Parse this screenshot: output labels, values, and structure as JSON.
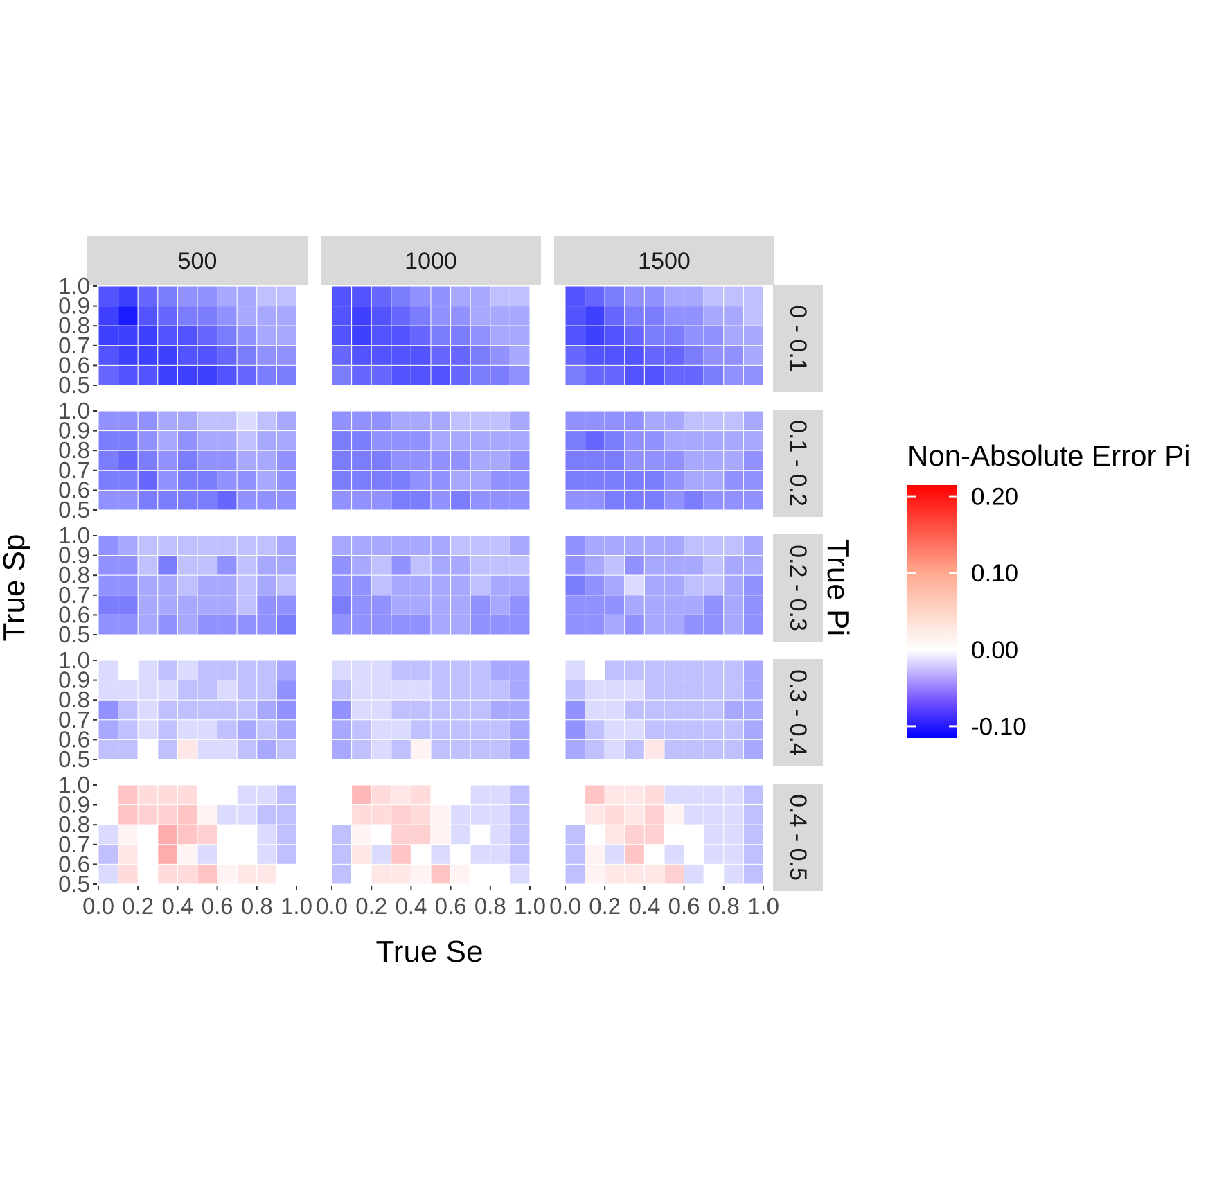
{
  "chart_data": {
    "type": "heatmap",
    "title": "",
    "xlabel": "True Se",
    "ylabel": "True Sp",
    "facet_col_label_title": "",
    "facet_row_title": "True Pi",
    "col_facets": [
      "500",
      "1000",
      "1500"
    ],
    "row_facets": [
      "0 - 0.1",
      "0.1 - 0.2",
      "0.2 - 0.3",
      "0.3 - 0.4",
      "0.4 - 0.5"
    ],
    "x_ticks": [
      "0.0",
      "0.2",
      "0.4",
      "0.6",
      "0.8",
      "1.0"
    ],
    "y_ticks": [
      "0.5",
      "0.6",
      "0.7",
      "0.8",
      "0.9",
      "1.0"
    ],
    "xlim": [
      0.0,
      1.0
    ],
    "ylim": [
      0.5,
      1.0
    ],
    "x_bins": 10,
    "y_bins": 5,
    "values_note": "values[row_facet][col_facet][sp_row from 1.0 down to 0.5][se_col from 0.0 to 1.0]",
    "values": [
      [
        [
          [
            -0.07,
            -0.08,
            -0.06,
            -0.05,
            -0.04,
            -0.04,
            -0.03,
            -0.03,
            -0.02,
            -0.02
          ],
          [
            -0.08,
            -0.1,
            -0.07,
            -0.06,
            -0.05,
            -0.05,
            -0.04,
            -0.03,
            -0.03,
            -0.03
          ],
          [
            -0.08,
            -0.08,
            -0.08,
            -0.07,
            -0.07,
            -0.06,
            -0.05,
            -0.04,
            -0.03,
            -0.03
          ],
          [
            -0.07,
            -0.08,
            -0.08,
            -0.08,
            -0.07,
            -0.07,
            -0.06,
            -0.05,
            -0.04,
            -0.04
          ],
          [
            -0.06,
            -0.07,
            -0.07,
            -0.08,
            -0.08,
            -0.08,
            -0.07,
            -0.06,
            -0.05,
            -0.05
          ]
        ],
        [
          [
            -0.07,
            -0.07,
            -0.06,
            -0.05,
            -0.04,
            -0.04,
            -0.03,
            -0.03,
            -0.02,
            -0.02
          ],
          [
            -0.07,
            -0.08,
            -0.07,
            -0.06,
            -0.05,
            -0.04,
            -0.04,
            -0.03,
            -0.03,
            -0.03
          ],
          [
            -0.07,
            -0.08,
            -0.07,
            -0.07,
            -0.06,
            -0.05,
            -0.05,
            -0.04,
            -0.03,
            -0.03
          ],
          [
            -0.06,
            -0.07,
            -0.07,
            -0.07,
            -0.07,
            -0.06,
            -0.06,
            -0.05,
            -0.04,
            -0.03
          ],
          [
            -0.05,
            -0.06,
            -0.06,
            -0.07,
            -0.07,
            -0.07,
            -0.06,
            -0.05,
            -0.05,
            -0.04
          ]
        ],
        [
          [
            -0.07,
            -0.06,
            -0.05,
            -0.04,
            -0.04,
            -0.03,
            -0.03,
            -0.02,
            -0.02,
            -0.02
          ],
          [
            -0.07,
            -0.08,
            -0.06,
            -0.05,
            -0.05,
            -0.04,
            -0.04,
            -0.03,
            -0.03,
            -0.02
          ],
          [
            -0.07,
            -0.08,
            -0.07,
            -0.06,
            -0.05,
            -0.05,
            -0.04,
            -0.04,
            -0.03,
            -0.03
          ],
          [
            -0.06,
            -0.07,
            -0.07,
            -0.07,
            -0.06,
            -0.06,
            -0.05,
            -0.04,
            -0.04,
            -0.03
          ],
          [
            -0.05,
            -0.06,
            -0.06,
            -0.07,
            -0.07,
            -0.06,
            -0.06,
            -0.05,
            -0.04,
            -0.04
          ]
        ]
      ],
      [
        [
          [
            -0.04,
            -0.04,
            -0.04,
            -0.03,
            -0.03,
            -0.02,
            -0.02,
            -0.01,
            -0.02,
            -0.03
          ],
          [
            -0.05,
            -0.05,
            -0.04,
            -0.03,
            -0.04,
            -0.03,
            -0.03,
            -0.02,
            -0.03,
            -0.03
          ],
          [
            -0.05,
            -0.06,
            -0.05,
            -0.04,
            -0.05,
            -0.04,
            -0.04,
            -0.03,
            -0.03,
            -0.04
          ],
          [
            -0.05,
            -0.05,
            -0.06,
            -0.04,
            -0.05,
            -0.05,
            -0.04,
            -0.04,
            -0.03,
            -0.04
          ],
          [
            -0.04,
            -0.04,
            -0.05,
            -0.05,
            -0.05,
            -0.05,
            -0.06,
            -0.04,
            -0.04,
            -0.04
          ]
        ],
        [
          [
            -0.04,
            -0.04,
            -0.04,
            -0.03,
            -0.03,
            -0.03,
            -0.02,
            -0.02,
            -0.02,
            -0.03
          ],
          [
            -0.05,
            -0.05,
            -0.04,
            -0.04,
            -0.04,
            -0.03,
            -0.03,
            -0.03,
            -0.03,
            -0.03
          ],
          [
            -0.05,
            -0.05,
            -0.05,
            -0.04,
            -0.04,
            -0.04,
            -0.04,
            -0.03,
            -0.03,
            -0.04
          ],
          [
            -0.05,
            -0.05,
            -0.05,
            -0.05,
            -0.04,
            -0.04,
            -0.03,
            -0.03,
            -0.04,
            -0.04
          ],
          [
            -0.04,
            -0.04,
            -0.04,
            -0.05,
            -0.05,
            -0.04,
            -0.05,
            -0.04,
            -0.04,
            -0.04
          ]
        ],
        [
          [
            -0.04,
            -0.04,
            -0.04,
            -0.04,
            -0.03,
            -0.03,
            -0.02,
            -0.02,
            -0.02,
            -0.03
          ],
          [
            -0.05,
            -0.06,
            -0.05,
            -0.04,
            -0.04,
            -0.03,
            -0.03,
            -0.03,
            -0.03,
            -0.03
          ],
          [
            -0.05,
            -0.05,
            -0.05,
            -0.04,
            -0.04,
            -0.04,
            -0.03,
            -0.03,
            -0.03,
            -0.04
          ],
          [
            -0.05,
            -0.05,
            -0.05,
            -0.05,
            -0.05,
            -0.04,
            -0.03,
            -0.03,
            -0.04,
            -0.04
          ],
          [
            -0.04,
            -0.04,
            -0.05,
            -0.05,
            -0.05,
            -0.04,
            -0.05,
            -0.04,
            -0.04,
            -0.04
          ]
        ]
      ],
      [
        [
          [
            -0.04,
            -0.03,
            -0.02,
            -0.02,
            -0.02,
            -0.02,
            -0.02,
            -0.02,
            -0.02,
            -0.03
          ],
          [
            -0.04,
            -0.04,
            -0.02,
            -0.05,
            -0.02,
            -0.02,
            -0.04,
            -0.02,
            -0.03,
            -0.03
          ],
          [
            -0.04,
            -0.04,
            -0.03,
            -0.03,
            -0.02,
            -0.03,
            -0.03,
            -0.02,
            -0.03,
            -0.02
          ],
          [
            -0.05,
            -0.05,
            -0.03,
            -0.03,
            -0.03,
            -0.03,
            -0.03,
            -0.02,
            -0.04,
            -0.04
          ],
          [
            -0.04,
            -0.04,
            -0.03,
            -0.04,
            -0.03,
            -0.04,
            -0.04,
            -0.04,
            -0.04,
            -0.05
          ]
        ],
        [
          [
            -0.03,
            -0.03,
            -0.03,
            -0.03,
            -0.03,
            -0.03,
            -0.02,
            -0.02,
            -0.02,
            -0.03
          ],
          [
            -0.04,
            -0.03,
            -0.02,
            -0.04,
            -0.02,
            -0.03,
            -0.03,
            -0.02,
            -0.02,
            -0.02
          ],
          [
            -0.04,
            -0.04,
            -0.02,
            -0.03,
            -0.03,
            -0.03,
            -0.03,
            -0.02,
            -0.03,
            -0.03
          ],
          [
            -0.05,
            -0.04,
            -0.04,
            -0.03,
            -0.03,
            -0.03,
            -0.03,
            -0.04,
            -0.03,
            -0.04
          ],
          [
            -0.04,
            -0.04,
            -0.04,
            -0.04,
            -0.04,
            -0.03,
            -0.03,
            -0.04,
            -0.04,
            -0.04
          ]
        ],
        [
          [
            -0.04,
            -0.03,
            -0.03,
            -0.03,
            -0.03,
            -0.03,
            -0.02,
            -0.02,
            -0.02,
            -0.03
          ],
          [
            -0.04,
            -0.03,
            -0.02,
            -0.04,
            -0.03,
            -0.03,
            -0.03,
            -0.02,
            -0.03,
            -0.03
          ],
          [
            -0.05,
            -0.04,
            -0.03,
            -0.01,
            -0.03,
            -0.03,
            -0.02,
            -0.02,
            -0.03,
            -0.04
          ],
          [
            -0.04,
            -0.04,
            -0.04,
            -0.03,
            -0.03,
            -0.03,
            -0.03,
            -0.04,
            -0.03,
            -0.04
          ],
          [
            -0.04,
            -0.04,
            -0.03,
            -0.04,
            -0.03,
            -0.03,
            -0.04,
            -0.04,
            -0.03,
            -0.04
          ]
        ]
      ],
      [
        [
          [
            -0.01,
            0.0,
            -0.01,
            -0.02,
            -0.01,
            -0.02,
            -0.02,
            -0.02,
            -0.02,
            -0.03
          ],
          [
            -0.01,
            -0.01,
            -0.01,
            -0.01,
            -0.02,
            -0.02,
            -0.01,
            -0.02,
            -0.02,
            -0.04
          ],
          [
            -0.04,
            -0.02,
            -0.01,
            -0.02,
            -0.02,
            -0.02,
            -0.02,
            -0.02,
            -0.03,
            -0.04
          ],
          [
            -0.03,
            -0.02,
            -0.01,
            -0.02,
            -0.01,
            -0.01,
            -0.02,
            -0.03,
            -0.02,
            -0.03
          ],
          [
            -0.02,
            -0.02,
            0.0,
            -0.02,
            0.02,
            -0.01,
            -0.01,
            -0.02,
            -0.03,
            -0.02
          ]
        ],
        [
          [
            -0.01,
            -0.01,
            -0.01,
            -0.02,
            -0.02,
            -0.02,
            -0.02,
            -0.02,
            -0.03,
            -0.03
          ],
          [
            -0.02,
            -0.01,
            -0.01,
            -0.01,
            -0.01,
            -0.02,
            -0.02,
            -0.02,
            -0.02,
            -0.03
          ],
          [
            -0.04,
            -0.01,
            -0.01,
            -0.02,
            -0.02,
            -0.02,
            -0.02,
            -0.02,
            -0.03,
            -0.03
          ],
          [
            -0.03,
            -0.02,
            -0.01,
            -0.01,
            -0.02,
            -0.02,
            -0.02,
            -0.02,
            -0.02,
            -0.03
          ],
          [
            -0.03,
            -0.02,
            -0.01,
            -0.02,
            0.01,
            -0.02,
            -0.02,
            -0.02,
            -0.02,
            -0.03
          ]
        ],
        [
          [
            -0.01,
            0.0,
            -0.02,
            -0.02,
            -0.02,
            -0.02,
            -0.02,
            -0.02,
            -0.02,
            -0.03
          ],
          [
            -0.02,
            -0.01,
            -0.01,
            -0.01,
            -0.02,
            -0.02,
            -0.02,
            -0.02,
            -0.02,
            -0.03
          ],
          [
            -0.04,
            -0.01,
            -0.01,
            -0.02,
            -0.02,
            -0.02,
            -0.02,
            -0.02,
            -0.03,
            -0.03
          ],
          [
            -0.04,
            -0.02,
            -0.01,
            -0.01,
            -0.02,
            -0.02,
            -0.02,
            -0.02,
            -0.02,
            -0.03
          ],
          [
            -0.03,
            -0.02,
            -0.01,
            -0.02,
            0.02,
            -0.02,
            -0.02,
            -0.02,
            -0.02,
            -0.03
          ]
        ]
      ],
      [
        [
          [
            0.0,
            0.05,
            0.03,
            0.03,
            0.03,
            0.0,
            0.0,
            -0.01,
            -0.01,
            -0.02
          ],
          [
            0.0,
            0.05,
            0.04,
            0.04,
            0.05,
            0.01,
            -0.01,
            -0.01,
            -0.02,
            -0.02
          ],
          [
            -0.01,
            0.01,
            0.0,
            0.07,
            0.05,
            0.04,
            0.0,
            0.0,
            -0.01,
            -0.02
          ],
          [
            -0.02,
            0.02,
            0.0,
            0.07,
            0.01,
            -0.01,
            0.0,
            0.0,
            -0.01,
            -0.02
          ],
          [
            -0.01,
            0.03,
            0.0,
            0.03,
            0.03,
            0.05,
            0.01,
            0.02,
            0.02,
            0.0
          ]
        ],
        [
          [
            0.0,
            0.06,
            0.03,
            0.02,
            0.03,
            0.0,
            0.0,
            -0.01,
            -0.01,
            -0.02
          ],
          [
            0.0,
            0.03,
            0.03,
            0.04,
            0.03,
            0.01,
            -0.01,
            -0.01,
            -0.01,
            -0.02
          ],
          [
            -0.02,
            0.01,
            0.0,
            0.04,
            0.04,
            0.01,
            -0.01,
            0.0,
            -0.01,
            -0.02
          ],
          [
            -0.02,
            0.02,
            -0.01,
            0.05,
            0.0,
            -0.01,
            0.0,
            -0.01,
            -0.01,
            -0.02
          ],
          [
            -0.02,
            0.0,
            0.02,
            0.02,
            0.01,
            0.05,
            0.01,
            0.0,
            0.0,
            -0.01
          ]
        ],
        [
          [
            0.0,
            0.05,
            0.02,
            0.02,
            0.03,
            -0.01,
            -0.01,
            -0.01,
            -0.01,
            -0.02
          ],
          [
            0.0,
            0.02,
            0.03,
            0.02,
            0.04,
            0.01,
            -0.01,
            -0.01,
            -0.01,
            -0.02
          ],
          [
            -0.02,
            0.0,
            0.02,
            0.04,
            0.04,
            0.0,
            0.0,
            -0.01,
            -0.01,
            -0.02
          ],
          [
            -0.02,
            0.01,
            -0.01,
            0.05,
            0.0,
            -0.01,
            0.0,
            -0.01,
            -0.01,
            -0.02
          ],
          [
            -0.02,
            0.01,
            0.02,
            0.02,
            0.02,
            0.04,
            -0.01,
            0.0,
            -0.01,
            -0.02
          ]
        ]
      ]
    ],
    "legend": {
      "title": "Non-Absolute Error Pi",
      "ticks": [
        "0.20",
        "0.10",
        "0.00",
        "-0.10"
      ],
      "tick_values": [
        0.2,
        0.1,
        0.0,
        -0.1
      ],
      "range": [
        -0.115,
        0.215
      ],
      "low_color": "#0000ff",
      "mid_color": "#ffffff",
      "high_color": "#ff0000",
      "placement": "right"
    },
    "colors": {
      "strip_fill": "#d9d9d9",
      "tick_color": "#333333",
      "grid_line": "#ffffff"
    }
  }
}
